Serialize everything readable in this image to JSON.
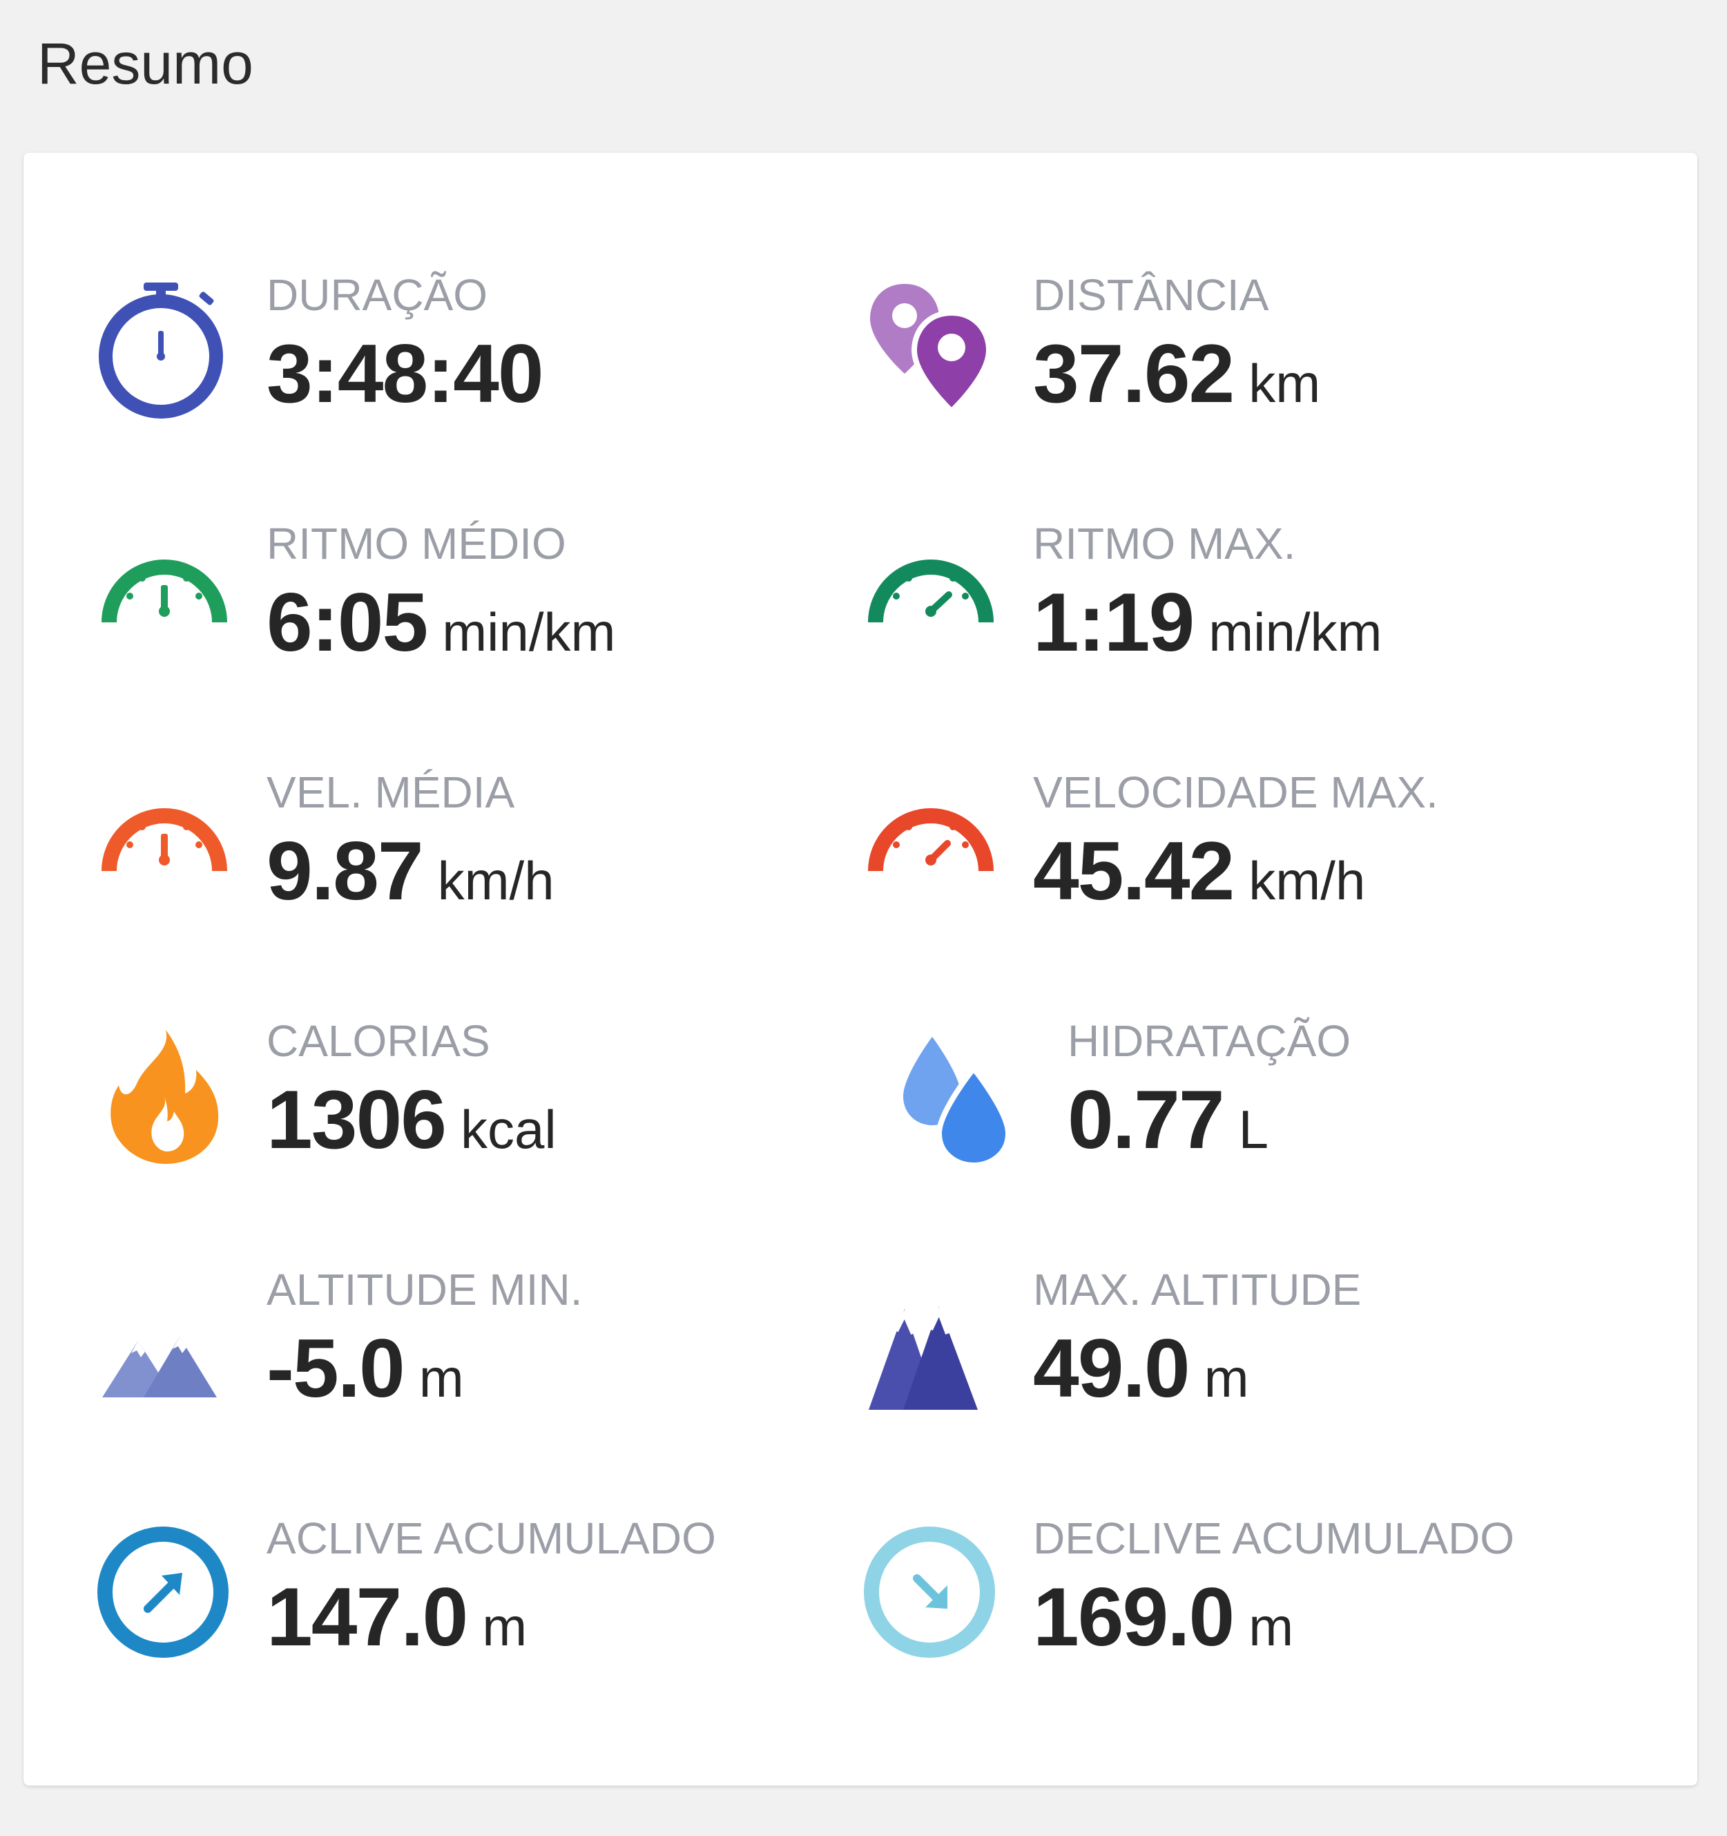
{
  "summary": {
    "title": "Resumo",
    "stats": [
      {
        "label": "DURAÇÃO",
        "value": "3:48:40",
        "unit": "",
        "icon": "stopwatch-icon",
        "color": "#3f51b5"
      },
      {
        "label": "DISTÂNCIA",
        "value": "37.62",
        "unit": "km",
        "icon": "map-pins-icon",
        "color": "#8e44ad"
      },
      {
        "label": "RITMO MÉDIO",
        "value": "6:05",
        "unit": "min/km",
        "icon": "gauge-icon",
        "color": "#1e9e5a"
      },
      {
        "label": "RITMO MAX.",
        "value": "1:19",
        "unit": "min/km",
        "icon": "gauge-icon",
        "color": "#138a5e"
      },
      {
        "label": "VEL. MÉDIA",
        "value": "9.87",
        "unit": "km/h",
        "icon": "speedometer-icon",
        "color": "#ef5a2a"
      },
      {
        "label": "VELOCIDADE MAX.",
        "value": "45.42",
        "unit": "km/h",
        "icon": "speedometer-icon",
        "color": "#e8472a"
      },
      {
        "label": "CALORIAS",
        "value": "1306",
        "unit": "kcal",
        "icon": "flame-icon",
        "color": "#f7931e"
      },
      {
        "label": "HIDRATAÇÃO",
        "value": "0.77",
        "unit": "L",
        "icon": "water-drops-icon",
        "color": "#3f87ea"
      },
      {
        "label": "ALTITUDE MIN.",
        "value": "-5.0",
        "unit": "m",
        "icon": "mountain-low-icon",
        "color": "#6e7fc4"
      },
      {
        "label": "MAX. ALTITUDE",
        "value": "49.0",
        "unit": "m",
        "icon": "mountain-high-icon",
        "color": "#3b3f9e"
      },
      {
        "label": "ACLIVE ACUMULADO",
        "value": "147.0",
        "unit": "m",
        "icon": "ascent-icon",
        "color": "#1e88c7"
      },
      {
        "label": "DECLIVE ACUMULADO",
        "value": "169.0",
        "unit": "m",
        "icon": "descent-icon",
        "color": "#8fd3e6"
      }
    ]
  }
}
